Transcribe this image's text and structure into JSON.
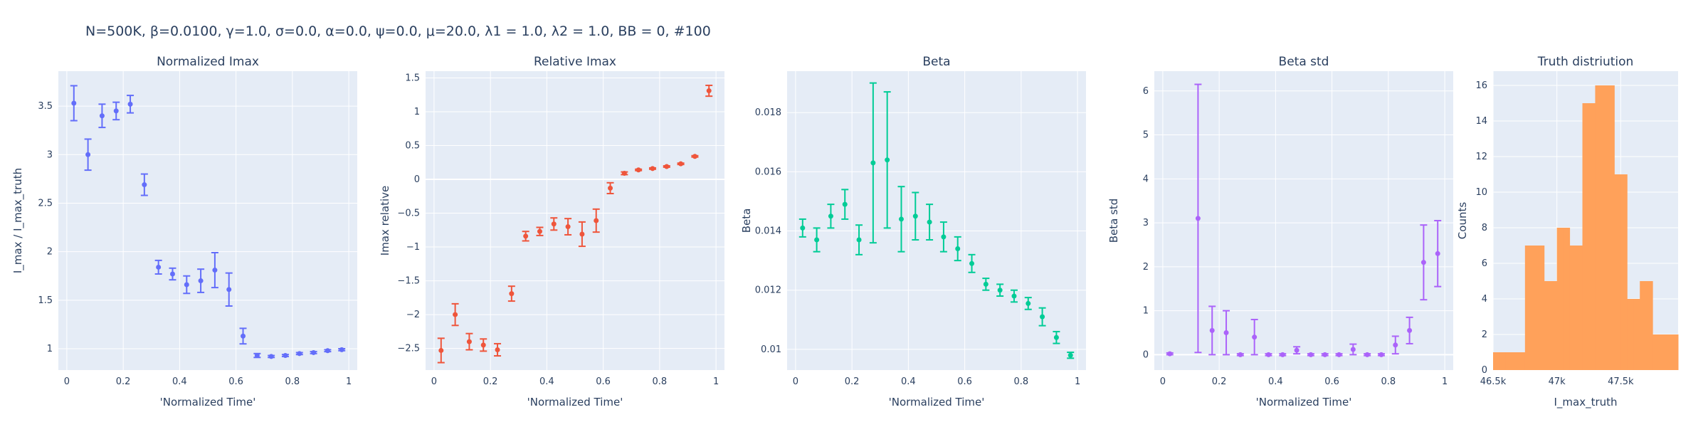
{
  "figure": {
    "title": "N=500K, β=0.0100, γ=1.0, σ=0.0,  α=0.0, ψ=0.0, μ=20.0, λ1 = 1.0, λ2 = 1.0, BB = 0, #100"
  },
  "chart_data": [
    {
      "type": "scatter",
      "title": "Normalized Imax",
      "xlabel": "'Normalized Time'",
      "ylabel": "I_max / I_max_truth",
      "xlim": [
        -0.03,
        1.03
      ],
      "ylim": [
        0.78,
        3.86
      ],
      "xticks": [
        0,
        0.2,
        0.4,
        0.6,
        0.8,
        1
      ],
      "xtick_labels": [
        "0",
        "0.2",
        "0.4",
        "0.6",
        "0.8",
        "1"
      ],
      "yticks": [
        1,
        1.5,
        2,
        2.5,
        3,
        3.5
      ],
      "ytick_labels": [
        "1",
        "1.5",
        "2",
        "2.5",
        "3",
        "3.5"
      ],
      "grid": true,
      "color": "#636efa",
      "x": [
        0.025,
        0.075,
        0.125,
        0.175,
        0.225,
        0.275,
        0.325,
        0.375,
        0.425,
        0.475,
        0.525,
        0.575,
        0.625,
        0.675,
        0.725,
        0.775,
        0.825,
        0.875,
        0.925,
        0.975
      ],
      "y": [
        3.53,
        3.0,
        3.4,
        3.45,
        3.52,
        2.69,
        1.84,
        1.77,
        1.66,
        1.7,
        1.81,
        1.61,
        1.13,
        0.93,
        0.92,
        0.93,
        0.95,
        0.96,
        0.98,
        0.99
      ],
      "error": [
        0.18,
        0.16,
        0.12,
        0.09,
        0.09,
        0.11,
        0.07,
        0.06,
        0.09,
        0.12,
        0.18,
        0.17,
        0.08,
        0.02,
        0.01,
        0.01,
        0.01,
        0.01,
        0.01,
        0.01
      ]
    },
    {
      "type": "scatter",
      "title": "Relative Imax",
      "xlabel": "'Normalized Time'",
      "ylabel": "Imax relative",
      "xlim": [
        -0.03,
        1.03
      ],
      "ylim": [
        -2.82,
        1.6
      ],
      "xticks": [
        0,
        0.2,
        0.4,
        0.6,
        0.8,
        1
      ],
      "xtick_labels": [
        "0",
        "0.2",
        "0.4",
        "0.6",
        "0.8",
        "1"
      ],
      "yticks": [
        -2.5,
        -2,
        -1.5,
        -1,
        -0.5,
        0,
        0.5,
        1,
        1.5
      ],
      "ytick_labels": [
        "−2.5",
        "−2",
        "−1.5",
        "−1",
        "−0.5",
        "0",
        "0.5",
        "1",
        "1.5"
      ],
      "grid": true,
      "color": "#ef553b",
      "x": [
        0.025,
        0.075,
        0.125,
        0.175,
        0.225,
        0.275,
        0.325,
        0.375,
        0.425,
        0.475,
        0.525,
        0.575,
        0.625,
        0.675,
        0.725,
        0.775,
        0.825,
        0.875,
        0.925,
        0.975
      ],
      "y": [
        -2.53,
        -2.0,
        -2.4,
        -2.45,
        -2.52,
        -1.69,
        -0.84,
        -0.77,
        -0.66,
        -0.7,
        -0.81,
        -0.61,
        -0.13,
        0.09,
        0.14,
        0.16,
        0.19,
        0.23,
        0.34,
        1.31
      ],
      "error": [
        0.18,
        0.16,
        0.12,
        0.09,
        0.09,
        0.11,
        0.07,
        0.06,
        0.09,
        0.12,
        0.18,
        0.17,
        0.08,
        0.02,
        0.01,
        0.01,
        0.01,
        0.01,
        0.01,
        0.08
      ]
    },
    {
      "type": "scatter",
      "title": "Beta",
      "xlabel": "'Normalized Time'",
      "ylabel": "Beta",
      "xlim": [
        -0.03,
        1.03
      ],
      "ylim": [
        0.0093,
        0.0194
      ],
      "xticks": [
        0,
        0.2,
        0.4,
        0.6,
        0.8,
        1
      ],
      "xtick_labels": [
        "0",
        "0.2",
        "0.4",
        "0.6",
        "0.8",
        "1"
      ],
      "yticks": [
        0.01,
        0.012,
        0.014,
        0.016,
        0.018
      ],
      "ytick_labels": [
        "0.01",
        "0.012",
        "0.014",
        "0.016",
        "0.018"
      ],
      "grid": true,
      "color": "#00cc96",
      "x": [
        0.025,
        0.075,
        0.125,
        0.175,
        0.225,
        0.275,
        0.325,
        0.375,
        0.425,
        0.475,
        0.525,
        0.575,
        0.625,
        0.675,
        0.725,
        0.775,
        0.825,
        0.875,
        0.925,
        0.975
      ],
      "y": [
        0.0141,
        0.0137,
        0.0145,
        0.0149,
        0.0137,
        0.0163,
        0.0164,
        0.0144,
        0.0145,
        0.0143,
        0.0138,
        0.0134,
        0.0129,
        0.0122,
        0.012,
        0.0118,
        0.01155,
        0.0111,
        0.0104,
        0.0098
      ],
      "error": [
        0.0003,
        0.0004,
        0.0004,
        0.0005,
        0.0005,
        0.0027,
        0.0023,
        0.0011,
        0.0008,
        0.0006,
        0.0005,
        0.0004,
        0.0003,
        0.0002,
        0.0002,
        0.0002,
        0.0002,
        0.0003,
        0.0002,
        0.0001
      ]
    },
    {
      "type": "scatter",
      "title": "Beta std",
      "xlabel": "'Normalized Time'",
      "ylabel": "Beta std",
      "xlim": [
        -0.03,
        1.03
      ],
      "ylim": [
        -0.35,
        6.45
      ],
      "xticks": [
        0,
        0.2,
        0.4,
        0.6,
        0.8,
        1
      ],
      "xtick_labels": [
        "0",
        "0.2",
        "0.4",
        "0.6",
        "0.8",
        "1"
      ],
      "yticks": [
        0,
        1,
        2,
        3,
        4,
        5,
        6
      ],
      "ytick_labels": [
        "0",
        "1",
        "2",
        "3",
        "4",
        "5",
        "6"
      ],
      "grid": true,
      "color": "#ab63fa",
      "x": [
        0.025,
        0.075,
        0.125,
        0.175,
        0.225,
        0.275,
        0.325,
        0.375,
        0.425,
        0.475,
        0.525,
        0.575,
        0.625,
        0.675,
        0.725,
        0.775,
        0.825,
        0.875,
        0.925,
        0.975
      ],
      "y": [
        0.02,
        null,
        3.1,
        0.55,
        0.5,
        0.0,
        0.4,
        0.0,
        0.0,
        0.1,
        0.0,
        0.0,
        0.0,
        0.12,
        0.0,
        0.0,
        0.22,
        0.55,
        2.1,
        2.3
      ],
      "error": [
        0.02,
        null,
        3.05,
        0.55,
        0.5,
        0.02,
        0.4,
        0.02,
        0.02,
        0.08,
        0.02,
        0.02,
        0.02,
        0.12,
        0.02,
        0.02,
        0.2,
        0.3,
        0.85,
        0.75
      ]
    },
    {
      "type": "bar",
      "title": "Truth distriution",
      "xlabel": "I_max_truth",
      "ylabel": "Counts",
      "xlim": [
        46500,
        47950
      ],
      "ylim": [
        0,
        16.8
      ],
      "xticks": [
        46500,
        47000,
        47500
      ],
      "xtick_labels": [
        "46.5k",
        "47k",
        "47.5k"
      ],
      "yticks": [
        0,
        2,
        4,
        6,
        8,
        10,
        12,
        14,
        16
      ],
      "ytick_labels": [
        "0",
        "2",
        "4",
        "6",
        "8",
        "10",
        "12",
        "14",
        "16"
      ],
      "grid": true,
      "color": "#ffa15a",
      "bin_width": 50,
      "bin_starts": [
        46500,
        46550,
        46600,
        46650,
        46700,
        46750,
        46800,
        46850,
        46900,
        46950,
        47000,
        47050,
        47100,
        47150,
        47200,
        47250,
        47300,
        47350,
        47400,
        47450,
        47500,
        47550,
        47600,
        47650,
        47700,
        47750,
        47800,
        47850,
        47900
      ],
      "values": [
        1,
        1,
        1,
        1,
        1,
        7,
        7,
        7,
        5,
        5,
        8,
        8,
        7,
        7,
        15,
        15,
        16,
        16,
        16,
        11,
        11,
        4,
        4,
        5,
        5,
        2,
        2,
        2,
        2
      ]
    }
  ]
}
